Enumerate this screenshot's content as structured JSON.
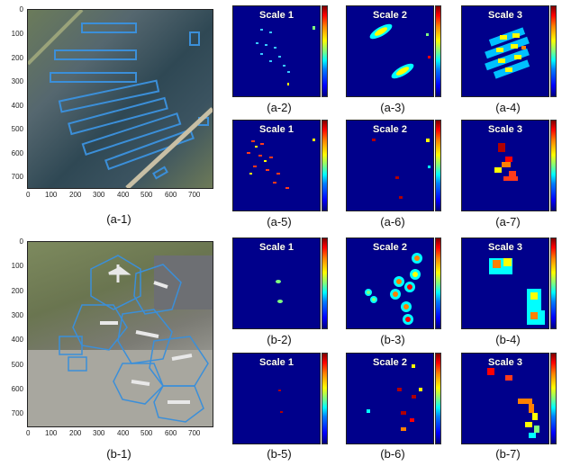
{
  "captions": {
    "a1": "(a-1)",
    "a2": "(a-2)",
    "a3": "(a-3)",
    "a4": "(a-4)",
    "a5": "(a-5)",
    "a6": "(a-6)",
    "a7": "(a-7)",
    "b1": "(b-1)",
    "b2": "(b-2)",
    "b3": "(b-3)",
    "b4": "(b-4)",
    "b5": "(b-5)",
    "b6": "(b-6)",
    "b7": "(b-7)"
  },
  "scales": {
    "s1": "Scale 1",
    "s2": "Scale 2",
    "s3": "Scale 3"
  },
  "photo_axis": {
    "yticks": [
      "0",
      "100",
      "200",
      "300",
      "400",
      "500",
      "600",
      "700"
    ],
    "xticks": [
      "0",
      "100",
      "200",
      "300",
      "400",
      "500",
      "600",
      "700"
    ]
  },
  "colors": {
    "heatmap_bg": "#00008b",
    "box_outline": "#3b8fd9"
  }
}
